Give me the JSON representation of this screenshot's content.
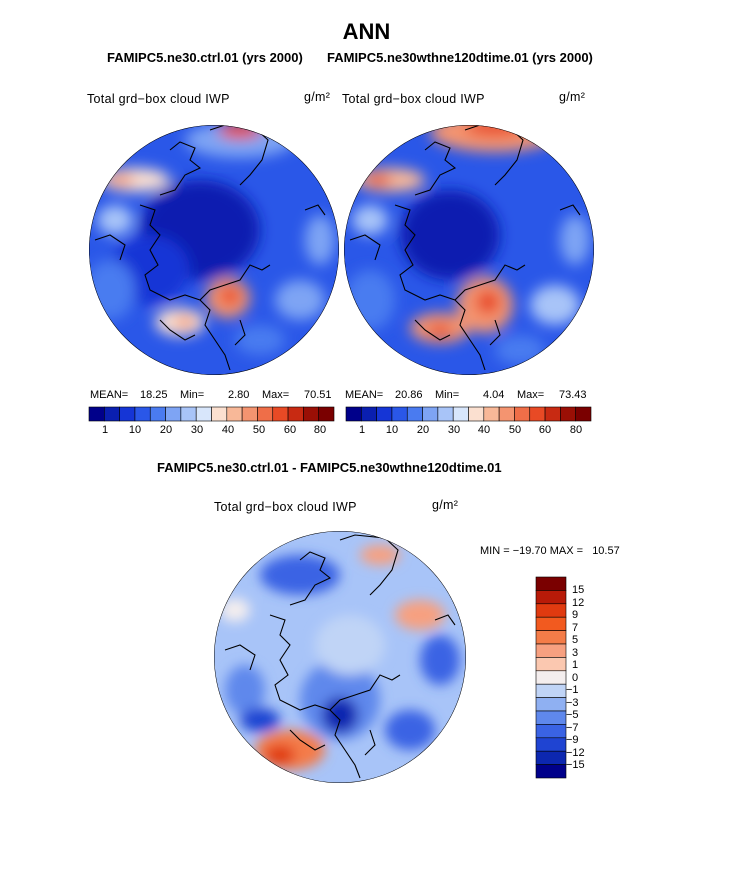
{
  "figure": {
    "title": "ANN",
    "subtitle_left": "FAMIPC5.ne30.ctrl.01 (yrs 2000)",
    "subtitle_right": "FAMIPC5.ne30wthne120dtime.01 (yrs 2000)",
    "diff_title": "FAMIPC5.ne30.ctrl.01 - FAMIPC5.ne30wthne120dtime.01"
  },
  "chart_data": [
    {
      "type": "heatmap",
      "projection": "north-polar-stereographic",
      "panel": "control",
      "variable_label": "Total grd−box cloud IWP",
      "units_label": "g/m²",
      "stats": {
        "mean_label": "MEAN=",
        "mean": "18.25",
        "min_label": "Min=",
        "min": "2.80",
        "max_label": "Max=",
        "max": "70.51"
      },
      "colorbar_ticks": [
        "1",
        "10",
        "20",
        "30",
        "40",
        "50",
        "60",
        "80"
      ],
      "colors": [
        "#00008a",
        "#0a1fb0",
        "#1535d6",
        "#2a57e8",
        "#4a7bf0",
        "#7ea4f4",
        "#a8c4f8",
        "#d8e6fb",
        "#fbe0d0",
        "#f8b898",
        "#f49470",
        "#ef6e48",
        "#e84a25",
        "#c82a12",
        "#9a0f05",
        "#7a0000"
      ]
    },
    {
      "type": "heatmap",
      "projection": "north-polar-stereographic",
      "panel": "test",
      "variable_label": "Total grd−box cloud IWP",
      "units_label": "g/m²",
      "stats": {
        "mean_label": "MEAN=",
        "mean": "20.86",
        "min_label": "Min=",
        "min": "4.04",
        "max_label": "Max=",
        "max": "73.43"
      },
      "colorbar_ticks": [
        "1",
        "10",
        "20",
        "30",
        "40",
        "50",
        "60",
        "80"
      ],
      "colors": [
        "#00008a",
        "#0a1fb0",
        "#1535d6",
        "#2a57e8",
        "#4a7bf0",
        "#7ea4f4",
        "#a8c4f8",
        "#d8e6fb",
        "#fbe0d0",
        "#f8b898",
        "#f49470",
        "#ef6e48",
        "#e84a25",
        "#c82a12",
        "#9a0f05",
        "#7a0000"
      ]
    },
    {
      "type": "heatmap",
      "projection": "north-polar-stereographic",
      "panel": "difference",
      "variable_label": "Total grd−box cloud IWP",
      "units_label": "g/m²",
      "minmax_text": "MIN = −19.70 MAX =   10.57",
      "min": -19.7,
      "max": 10.57,
      "levels": [
        "15",
        "12",
        "9",
        "7",
        "5",
        "3",
        "1",
        "0",
        "−1",
        "−3",
        "−5",
        "−7",
        "−9",
        "−12",
        "−15"
      ],
      "colors": [
        "#7a0000",
        "#b81a08",
        "#e03a10",
        "#f25a1f",
        "#f47c48",
        "#f7a080",
        "#fbc8b0",
        "#f4eeee",
        "#c0d4f6",
        "#8fb0f2",
        "#5f88ec",
        "#3a63e4",
        "#1f44d2",
        "#0c27b0",
        "#00008a"
      ]
    }
  ]
}
